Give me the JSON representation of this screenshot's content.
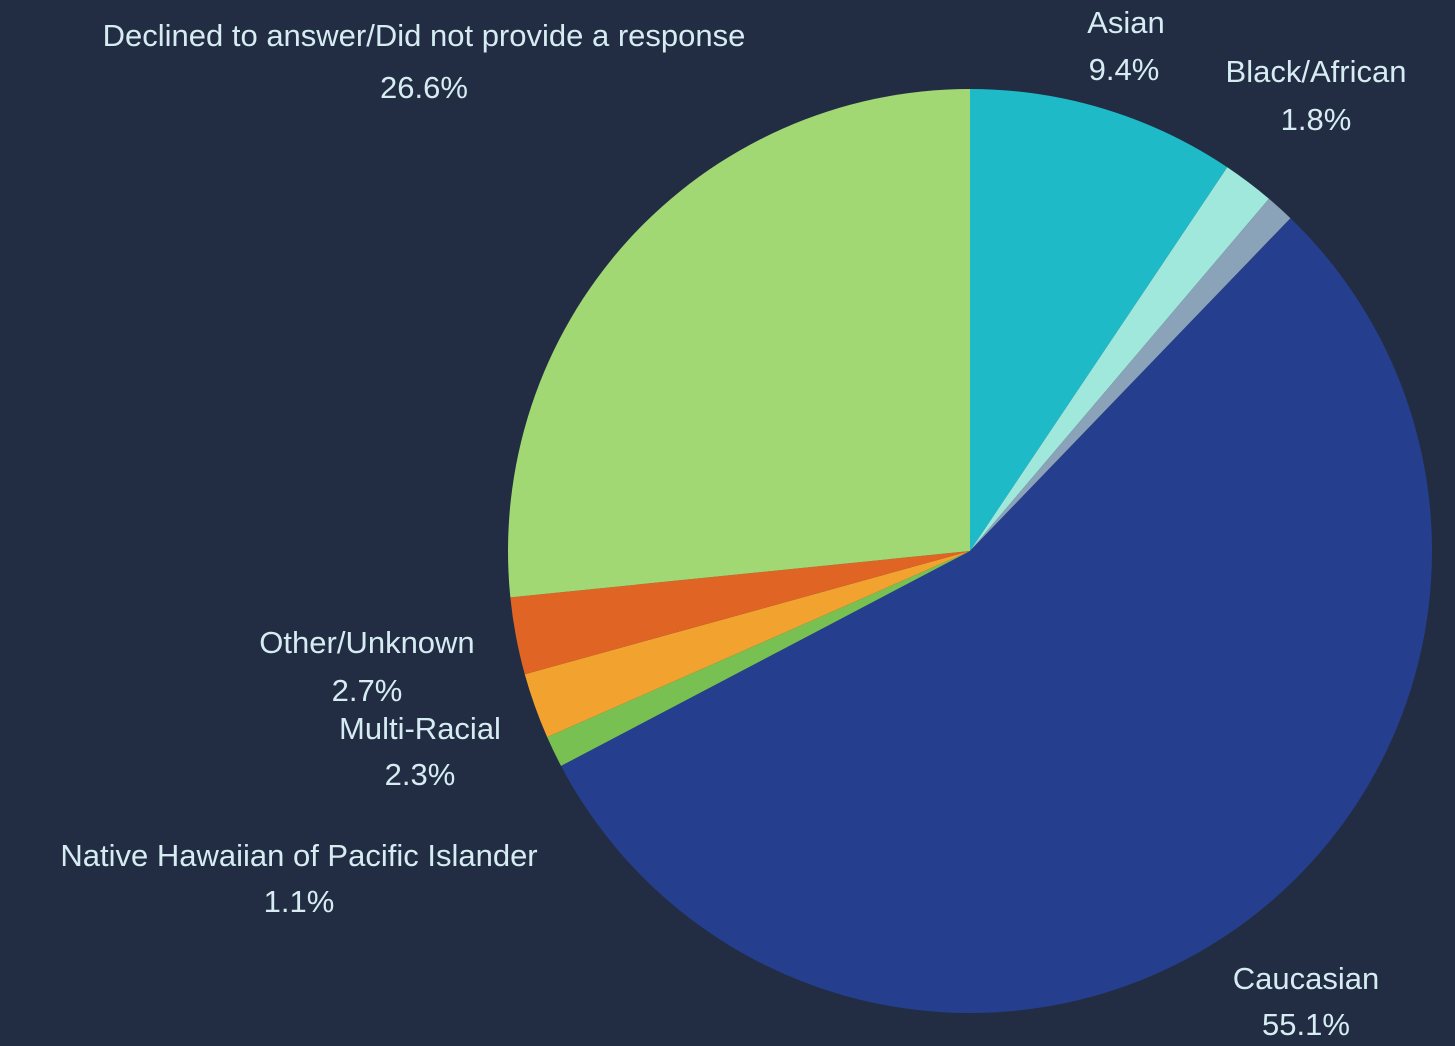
{
  "background": "#222d43",
  "label_color": "#d6ecf2",
  "chart_data": {
    "type": "pie",
    "start": "12 o'clock",
    "direction": "clockwise",
    "slices": [
      {
        "label": "Asian",
        "value": 9.4,
        "value_label": "9.4%",
        "color": "#1fbac8"
      },
      {
        "label": "Black/African",
        "value": 1.8,
        "value_label": "1.8%",
        "color": "#a0e8dc"
      },
      {
        "label": "",
        "value": 1.0,
        "value_label": "",
        "color": "#8aa3b8"
      },
      {
        "label": "Caucasian",
        "value": 55.1,
        "value_label": "55.1%",
        "color": "#253f8e"
      },
      {
        "label": "Native Hawaiian of Pacific Islander",
        "value": 1.1,
        "value_label": "1.1%",
        "color": "#79c053"
      },
      {
        "label": "Multi-Racial",
        "value": 2.3,
        "value_label": "2.3%",
        "color": "#f2a22e"
      },
      {
        "label": "Other/Unknown",
        "value": 2.7,
        "value_label": "2.7%",
        "color": "#e06424"
      },
      {
        "label": "Declined to answer/Did not provide a response",
        "value": 26.6,
        "value_label": "26.6%",
        "color": "#a2d874"
      }
    ]
  }
}
